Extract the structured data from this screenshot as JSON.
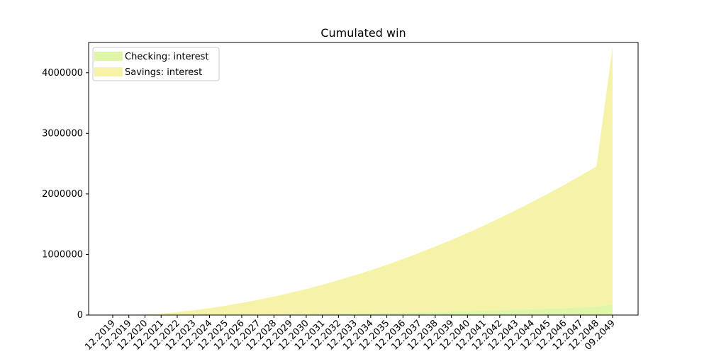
{
  "chart_data": {
    "type": "area",
    "stacked": true,
    "title": "Cumulated win",
    "xlabel": "",
    "ylabel": "",
    "x_ticks": [
      "12.2019",
      "12.2019",
      "12.2020",
      "12.2021",
      "12.2022",
      "12.2023",
      "12.2024",
      "12.2025",
      "12.2026",
      "12.2027",
      "12.2028",
      "12.2029",
      "12.2030",
      "12.2031",
      "12.2032",
      "12.2033",
      "12.2034",
      "12.2035",
      "12.2036",
      "12.2037",
      "12.2038",
      "12.2039",
      "12.2040",
      "12.2041",
      "12.2042",
      "12.2043",
      "12.2044",
      "12.2045",
      "12.2046",
      "12.2047",
      "12.2048",
      "09.2049"
    ],
    "ylim": [
      0,
      4500000
    ],
    "y_ticks": [
      0,
      1000000,
      2000000,
      3000000,
      4000000
    ],
    "y_tick_labels": [
      "0",
      "1000000",
      "2000000",
      "3000000",
      "4000000"
    ],
    "legend_position": "top-left",
    "series": [
      {
        "name": "Checking: interest",
        "color": "#dff5a8",
        "values": [
          0,
          0,
          200,
          700,
          1500,
          2500,
          3800,
          5300,
          7000,
          9000,
          11300,
          13900,
          16800,
          20000,
          23500,
          27400,
          31600,
          36200,
          41200,
          46600,
          52400,
          58600,
          65300,
          72500,
          80200,
          88400,
          97100,
          106300,
          116100,
          126500,
          137500,
          180000
        ]
      },
      {
        "name": "Savings: interest",
        "color": "#f5f3a8",
        "values": [
          0,
          0,
          9800,
          24300,
          48500,
          77500,
          111200,
          149700,
          193000,
          241000,
          293700,
          351100,
          413200,
          480000,
          551500,
          627600,
          708400,
          793800,
          883800,
          978400,
          1077600,
          1181400,
          1289700,
          1402500,
          1519800,
          1641600,
          1767900,
          1898700,
          2033900,
          2173500,
          2317500,
          4250000
        ]
      }
    ]
  }
}
